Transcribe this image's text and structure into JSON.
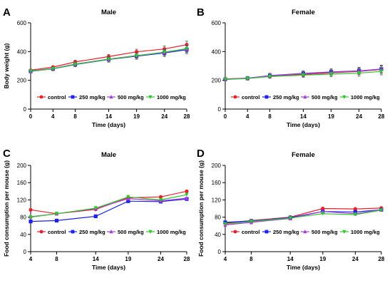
{
  "colors": {
    "control": "#e8202a",
    "250": "#1c21e6",
    "500": "#a63fd6",
    "1000": "#2ec82e"
  },
  "legend_labels": [
    "control",
    "250 mg/kg",
    "500 mg/kg",
    "1000 mg/kg"
  ],
  "chart_data": [
    {
      "panel": "A",
      "type": "line",
      "title": "Male",
      "xlabel": "Time (days)",
      "ylabel": "Body weight (g)",
      "x": [
        0,
        4,
        8,
        14,
        19,
        24,
        28
      ],
      "x_ticks": [
        "0",
        "4",
        "8",
        "14",
        "19",
        "24",
        "28"
      ],
      "ylim": [
        0,
        600
      ],
      "y_ticks": [
        "0",
        "200",
        "400",
        "600"
      ],
      "error_bars": true,
      "legend_position": "bottom",
      "series": [
        {
          "name": "control",
          "values": [
            270,
            292,
            328,
            365,
            398,
            418,
            448
          ]
        },
        {
          "name": "250 mg/kg",
          "values": [
            263,
            280,
            310,
            345,
            368,
            390,
            413
          ]
        },
        {
          "name": "500 mg/kg",
          "values": [
            265,
            282,
            313,
            348,
            372,
            394,
            418
          ]
        },
        {
          "name": "1000 mg/kg",
          "values": [
            264,
            281,
            312,
            347,
            371,
            396,
            420
          ]
        }
      ]
    },
    {
      "panel": "B",
      "type": "line",
      "title": "Female",
      "xlabel": "Time (days)",
      "ylabel": "",
      "x": [
        0,
        4,
        8,
        14,
        19,
        24,
        28
      ],
      "x_ticks": [
        "0",
        "4",
        "8",
        "14",
        "19",
        "24",
        "28"
      ],
      "ylim": [
        0,
        600
      ],
      "y_ticks": [
        "0",
        "200",
        "400",
        "600"
      ],
      "error_bars": true,
      "legend_position": "bottom",
      "series": [
        {
          "name": "control",
          "values": [
            210,
            215,
            230,
            240,
            252,
            262,
            275
          ]
        },
        {
          "name": "250 mg/kg",
          "values": [
            207,
            214,
            233,
            248,
            258,
            266,
            278
          ]
        },
        {
          "name": "500 mg/kg",
          "values": [
            208,
            215,
            232,
            246,
            256,
            265,
            277
          ]
        },
        {
          "name": "1000 mg/kg",
          "values": [
            206,
            212,
            226,
            236,
            243,
            250,
            262
          ]
        }
      ]
    },
    {
      "panel": "C",
      "type": "line",
      "title": "Male",
      "xlabel": "Time (days)",
      "ylabel": "Food consumption per mouse (g)",
      "x": [
        4,
        8,
        14,
        19,
        24,
        28
      ],
      "x_ticks": [
        "4",
        "8",
        "14",
        "19",
        "24",
        "28"
      ],
      "ylim": [
        0,
        200
      ],
      "y_ticks": [
        "0",
        "40",
        "80",
        "120",
        "160",
        "200"
      ],
      "error_bars": false,
      "legend_position": "bottom",
      "series": [
        {
          "name": "control",
          "values": [
            97,
            88,
            98,
            125,
            127,
            140
          ]
        },
        {
          "name": "250 mg/kg",
          "values": [
            70,
            72,
            82,
            117,
            116,
            122
          ]
        },
        {
          "name": "500 mg/kg",
          "values": [
            81,
            88,
            100,
            123,
            118,
            124
          ]
        },
        {
          "name": "1000 mg/kg",
          "values": [
            80,
            88,
            101,
            127,
            120,
            132
          ]
        }
      ]
    },
    {
      "panel": "D",
      "type": "line",
      "title": "Female",
      "xlabel": "Time (days)",
      "ylabel": "Food consumption per mouse (g)",
      "x": [
        4,
        8,
        14,
        19,
        24,
        28
      ],
      "x_ticks": [
        "4",
        "8",
        "14",
        "19",
        "24",
        "28"
      ],
      "ylim": [
        0,
        200
      ],
      "y_ticks": [
        "0",
        "40",
        "80",
        "120",
        "160",
        "200"
      ],
      "error_bars": false,
      "legend_position": "bottom",
      "series": [
        {
          "name": "control",
          "values": [
            66,
            72,
            80,
            100,
            99,
            101
          ]
        },
        {
          "name": "250 mg/kg",
          "values": [
            68,
            71,
            79,
            93,
            92,
            97
          ]
        },
        {
          "name": "500 mg/kg",
          "values": [
            62,
            68,
            77,
            93,
            88,
            97
          ]
        },
        {
          "name": "1000 mg/kg",
          "values": [
            64,
            70,
            78,
            88,
            86,
            96
          ]
        }
      ]
    }
  ]
}
